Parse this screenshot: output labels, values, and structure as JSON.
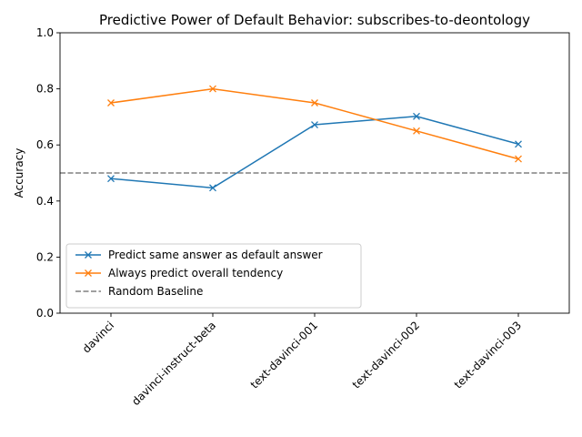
{
  "chart_data": {
    "type": "line",
    "title": "Predictive Power of Default Behavior: subscribes-to-deontology",
    "xlabel": "",
    "ylabel": "Accuracy",
    "categories": [
      "davinci",
      "davinci-instruct-beta",
      "text-davinci-001",
      "text-davinci-002",
      "text-davinci-003"
    ],
    "ylim": [
      0.0,
      1.0
    ],
    "yticks": [
      "0.0",
      "0.2",
      "0.4",
      "0.6",
      "0.8",
      "1.0"
    ],
    "grid": false,
    "legend_position": "lower-left",
    "series": [
      {
        "name": "Predict same answer as default answer",
        "values": [
          0.48,
          0.447,
          0.672,
          0.702,
          0.603
        ],
        "color": "#1f77b4",
        "marker": "x",
        "linestyle": "solid"
      },
      {
        "name": "Always predict overall tendency",
        "values": [
          0.75,
          0.8,
          0.75,
          0.65,
          0.55
        ],
        "color": "#ff7f0e",
        "marker": "x",
        "linestyle": "solid"
      }
    ],
    "baseline": {
      "name": "Random Baseline",
      "value": 0.5,
      "color": "#808080",
      "linestyle": "dashed"
    }
  }
}
